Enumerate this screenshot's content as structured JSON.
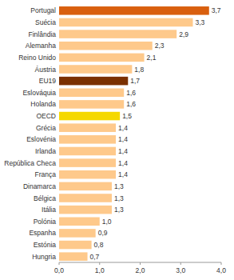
{
  "chart_data": {
    "type": "bar",
    "orientation": "horizontal",
    "categories": [
      "Portugal",
      "Suécia",
      "Finlândia",
      "Alemanha",
      "Reino Unido",
      "Áustria",
      "EU19",
      "Eslováquia",
      "Holanda",
      "OECD",
      "Grécia",
      "Eslovénia",
      "Irlanda",
      "República Checa",
      "França",
      "Dinamarca",
      "Bélgica",
      "Itália",
      "Polónia",
      "Espanha",
      "Estónia",
      "Hungria"
    ],
    "values": [
      3.7,
      3.3,
      2.9,
      2.3,
      2.1,
      1.8,
      1.7,
      1.6,
      1.6,
      1.5,
      1.4,
      1.4,
      1.4,
      1.4,
      1.4,
      1.3,
      1.3,
      1.3,
      1.0,
      0.9,
      0.8,
      0.7
    ],
    "value_labels": [
      "3,7",
      "3,3",
      "2,9",
      "2,3",
      "2,1",
      "1,8",
      "1,7",
      "1,6",
      "1,6",
      "1,5",
      "1,4",
      "1,4",
      "1,4",
      "1,4",
      "1,4",
      "1,3",
      "1,3",
      "1,3",
      "1,0",
      "0,9",
      "0,8",
      "0,7"
    ],
    "colors": [
      "#d95f0e",
      "#fec98b",
      "#fec98b",
      "#fec98b",
      "#fec98b",
      "#fec98b",
      "#7b3000",
      "#fec98b",
      "#fec98b",
      "#f5d800",
      "#fec98b",
      "#fec98b",
      "#fec98b",
      "#fec98b",
      "#fec98b",
      "#fec98b",
      "#fec98b",
      "#fec98b",
      "#fec98b",
      "#fec98b",
      "#fec98b",
      "#fec98b"
    ],
    "data_labels": true,
    "xlim": [
      0,
      4.0
    ],
    "xticks": [
      {
        "value": 0.0,
        "label": "0,0"
      },
      {
        "value": 1.0,
        "label": "1,0"
      },
      {
        "value": 2.0,
        "label": "2,0"
      },
      {
        "value": 3.0,
        "label": "3,0"
      },
      {
        "value": 4.0,
        "label": "4,0"
      }
    ],
    "grid": false
  }
}
